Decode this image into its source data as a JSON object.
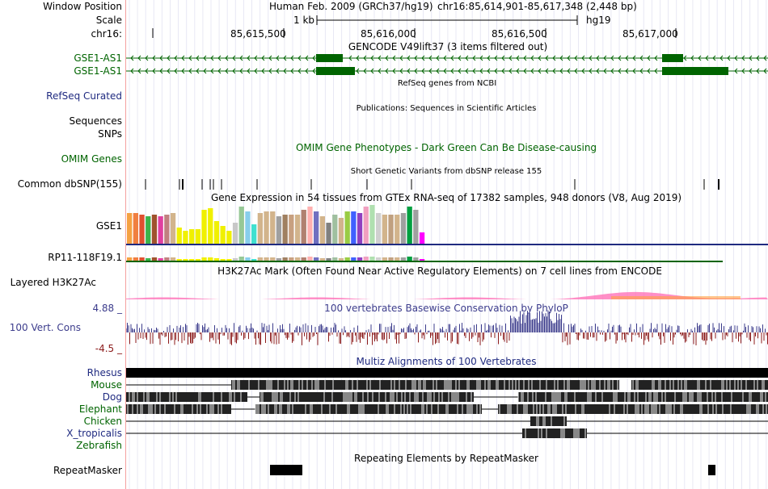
{
  "labels": {
    "window_position": "Window Position",
    "scale": "Scale",
    "chrom": "chr16:",
    "gse1_as1_a": "GSE1-AS1",
    "gse1_as1_b": "GSE1-AS1",
    "refseq": "RefSeq Curated",
    "sequences": "Sequences",
    "snps": "SNPs",
    "omim": "OMIM Genes",
    "dbsnp": "Common dbSNP(155)",
    "gse1": "GSE1",
    "rp11": "RP11-118F19.1",
    "h3k27ac": "Layered H3K27Ac",
    "cons_max": "4.88 _",
    "cons": "100 Vert. Cons",
    "cons_min": "-4.5 _",
    "species": [
      "Rhesus",
      "Mouse",
      "Dog",
      "Elephant",
      "Chicken",
      "X_tropicalis",
      "Zebrafish"
    ],
    "repeatmasker": "RepeatMasker"
  },
  "header": {
    "assembly": "Human Feb. 2009 (GRCh37/hg19)",
    "position": "chr16:85,614,901-85,617,348 (2,448 bp)",
    "scale_label": "1 kb",
    "assembly_short": "hg19",
    "ticks": [
      "85,615,500",
      "85,616,000",
      "85,616,500",
      "85,617,000"
    ]
  },
  "titles": {
    "gencode": "GENCODE V49lift37 (3 items filtered out)",
    "refseq": "RefSeq genes from NCBI",
    "publications": "Publications: Sequences in Scientific Articles",
    "omim": "OMIM Gene Phenotypes - Dark Green Can Be Disease-causing",
    "dbsnp": "Short Genetic Variants from dbSNP release 155",
    "gtex": "Gene Expression in 54 tissues from GTEx RNA-seq of 17382 samples, 948 donors (V8, Aug 2019)",
    "h3k27ac": "H3K27Ac Mark (Often Found Near Active Regulatory Elements) on 7 cell lines from ENCODE",
    "phylop": "100 vertebrates Basewise Conservation by PhyloP",
    "multiz": "Multiz Alignments of 100 Vertebrates",
    "repeatmasker": "Repeating Elements by RepeatMasker"
  },
  "colors": {
    "gencode": "#006400",
    "refseq": "#1f2a80",
    "omim": "#006400",
    "cons": "#3c3c8c",
    "cons_neg": "#8b1a1a",
    "species": [
      "#1f2a80",
      "#006400",
      "#1f2a80",
      "#006400",
      "#006400",
      "#1f2a80",
      "#006400"
    ]
  },
  "gtex_colors": [
    "#f5a142",
    "#f07f40",
    "#e05030",
    "#3cb44b",
    "#a0522d",
    "#e040a0",
    "#c08080",
    "#d2b48c",
    "#f0f000",
    "#f0f000",
    "#f0f000",
    "#f0f000",
    "#f0f000",
    "#f0f000",
    "#f0f000",
    "#f0f000",
    "#f0f000",
    "#c8c8c8",
    "#96c896",
    "#87ceeb",
    "#40e0d0",
    "#d2b48c",
    "#d2b48c",
    "#d2b48c",
    "#a0a0a0",
    "#a08060",
    "#c8a080",
    "#d2b48c",
    "#b08070",
    "#ffb0b0",
    "#7070c0",
    "#d2b48c",
    "#808080",
    "#a0c0a0",
    "#d2b48c",
    "#99cc44",
    "#4060ff",
    "#9040c0",
    "#f0a0c0",
    "#b0e0b0",
    "#d0d0d0",
    "#d2b48c",
    "#c0a080",
    "#d2b48c",
    "#a0a0a0",
    "#00a040",
    "#a0a0a0",
    "#ff00ff"
  ],
  "gtex_values": [
    38,
    38,
    36,
    34,
    36,
    34,
    36,
    38,
    20,
    16,
    18,
    18,
    42,
    44,
    28,
    22,
    16,
    26,
    46,
    40,
    24,
    38,
    40,
    40,
    34,
    36,
    36,
    36,
    42,
    46,
    40,
    34,
    26,
    36,
    32,
    40,
    40,
    38,
    46,
    48,
    38,
    36,
    36,
    36,
    38,
    46,
    42,
    14
  ]
}
